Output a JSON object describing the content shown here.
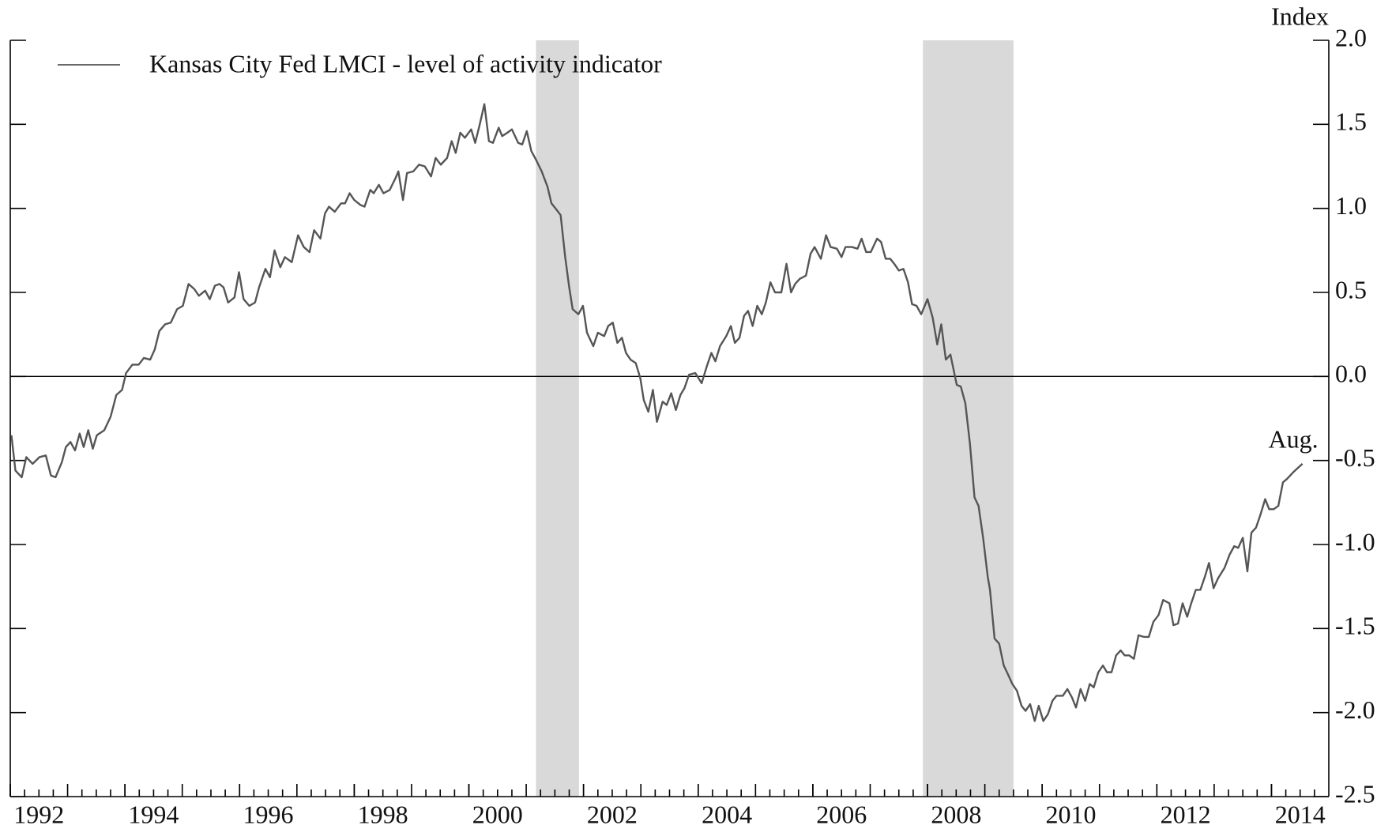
{
  "chart_data": {
    "type": "line",
    "y_label": "Index",
    "legend": "top-left",
    "annotation": "Aug.",
    "reference_line": 0,
    "xlim": [
      1992,
      2015
    ],
    "xticks": [
      1992,
      1994,
      1996,
      1998,
      2000,
      2002,
      2004,
      2006,
      2008,
      2010,
      2012,
      2014
    ],
    "ylim": [
      -2.5,
      2.0
    ],
    "yticks": [
      {
        "value": -2.5,
        "label": "-2.5"
      },
      {
        "value": -2,
        "label": "-2.0"
      },
      {
        "value": -1.5,
        "label": "-1.5"
      },
      {
        "value": -1,
        "label": "-1.0"
      },
      {
        "value": -0.5,
        "label": "-0.5"
      },
      {
        "value": 0,
        "label": "0.0"
      },
      {
        "value": 0.5,
        "label": "0.5"
      },
      {
        "value": 1,
        "label": "1.0"
      },
      {
        "value": 1.5,
        "label": "1.5"
      },
      {
        "value": 2,
        "label": "2.0"
      }
    ],
    "shaded_periods": [
      [
        2001.17,
        2001.92
      ],
      [
        2007.92,
        2009.5
      ]
    ],
    "shade_color": "#d9d9d9",
    "x": [
      1992.02,
      1992.09,
      1992.2,
      1992.28,
      1992.39,
      1992.51,
      1992.62,
      1992.71,
      1992.79,
      1992.9,
      1992.97,
      1993.05,
      1993.13,
      1993.21,
      1993.28,
      1993.36,
      1993.44,
      1993.51,
      1993.64,
      1993.75,
      1993.85,
      1993.95,
      1994.02,
      1994.13,
      1994.24,
      1994.33,
      1994.44,
      1994.52,
      1994.6,
      1994.7,
      1994.8,
      1994.91,
      1995.01,
      1995.11,
      1995.21,
      1995.29,
      1995.4,
      1995.48,
      1995.57,
      1995.65,
      1995.72,
      1995.8,
      1995.91,
      1995.99,
      1996.07,
      1996.17,
      1996.27,
      1996.34,
      1996.45,
      1996.53,
      1996.61,
      1996.71,
      1996.79,
      1996.91,
      1997.02,
      1997.12,
      1997.22,
      1997.3,
      1997.41,
      1997.49,
      1997.56,
      1997.66,
      1997.77,
      1997.84,
      1997.92,
      1998.0,
      1998.11,
      1998.18,
      1998.28,
      1998.34,
      1998.43,
      1998.51,
      1998.62,
      1998.72,
      1998.77,
      1998.85,
      1998.92,
      1999.03,
      1999.13,
      1999.23,
      1999.34,
      1999.42,
      1999.51,
      1999.62,
      1999.7,
      1999.77,
      1999.85,
      1999.93,
      2000.04,
      2000.11,
      2000.19,
      2000.27,
      2000.35,
      2000.42,
      2000.52,
      2000.58,
      2000.67,
      2000.75,
      2000.86,
      2000.93,
      2001.01,
      2001.09,
      2001.17,
      2001.27,
      2001.37,
      2001.44,
      2001.51,
      2001.6,
      2001.68,
      2001.75,
      2001.81,
      2001.91,
      2001.99,
      2002.06,
      2002.17,
      2002.25,
      2002.36,
      2002.43,
      2002.51,
      2002.59,
      2002.67,
      2002.74,
      2002.82,
      2002.91,
      2002.99,
      2003.05,
      2003.13,
      2003.21,
      2003.28,
      2003.38,
      2003.45,
      2003.53,
      2003.61,
      2003.69,
      2003.76,
      2003.84,
      2003.95,
      2004.06,
      2004.15,
      2004.23,
      2004.3,
      2004.38,
      2004.49,
      2004.57,
      2004.64,
      2004.72,
      2004.8,
      2004.87,
      2004.95,
      2005.03,
      2005.11,
      2005.18,
      2005.26,
      2005.34,
      2005.45,
      2005.54,
      2005.62,
      2005.69,
      2005.77,
      2005.88,
      2005.96,
      2006.03,
      2006.14,
      2006.23,
      2006.31,
      2006.42,
      2006.5,
      2006.57,
      2006.68,
      2006.78,
      2006.85,
      2006.93,
      2007.01,
      2007.12,
      2007.19,
      2007.27,
      2007.35,
      2007.42,
      2007.5,
      2007.58,
      2007.66,
      2007.73,
      2007.81,
      2007.89,
      2008.0,
      2008.09,
      2008.17,
      2008.24,
      2008.32,
      2008.4,
      2008.51,
      2008.58,
      2008.66,
      2008.74,
      2008.82,
      2008.89,
      2008.97,
      2009.05,
      2009.09,
      2009.17,
      2009.25,
      2009.33,
      2009.4,
      2009.48,
      2009.56,
      2009.64,
      2009.71,
      2009.79,
      2009.87,
      2009.94,
      2010.02,
      2010.1,
      2010.18,
      2010.25,
      2010.36,
      2010.44,
      2010.52,
      2010.59,
      2010.67,
      2010.75,
      2010.83,
      2010.9,
      2010.98,
      2011.06,
      2011.13,
      2011.21,
      2011.29,
      2011.37,
      2011.44,
      2011.52,
      2011.6,
      2011.68,
      2011.78,
      2011.86,
      2011.94,
      2012.03,
      2012.11,
      2012.22,
      2012.29,
      2012.37,
      2012.45,
      2012.53,
      2012.6,
      2012.68,
      2012.76,
      2012.84,
      2012.91,
      2012.99,
      2013.07,
      2013.18,
      2013.27,
      2013.35,
      2013.42,
      2013.5,
      2013.58,
      2013.65,
      2013.73,
      2013.81,
      2013.89,
      2013.96,
      2014.04,
      2014.12,
      2014.2,
      2014.27,
      2014.38,
      2014.54
    ],
    "series": [
      {
        "name": "Kansas City Fed LMCI - level of activity indicator",
        "color": "#555555",
        "values": [
          -0.35,
          -0.56,
          -0.6,
          -0.48,
          -0.52,
          -0.48,
          -0.47,
          -0.59,
          -0.6,
          -0.51,
          -0.42,
          -0.39,
          -0.44,
          -0.34,
          -0.42,
          -0.32,
          -0.43,
          -0.35,
          -0.32,
          -0.24,
          -0.11,
          -0.08,
          0.02,
          0.07,
          0.07,
          0.11,
          0.1,
          0.16,
          0.27,
          0.31,
          0.32,
          0.4,
          0.42,
          0.55,
          0.52,
          0.48,
          0.51,
          0.46,
          0.54,
          0.55,
          0.53,
          0.44,
          0.47,
          0.62,
          0.46,
          0.42,
          0.44,
          0.53,
          0.64,
          0.59,
          0.75,
          0.65,
          0.71,
          0.68,
          0.84,
          0.77,
          0.74,
          0.87,
          0.82,
          0.97,
          1.01,
          0.98,
          1.03,
          1.03,
          1.09,
          1.05,
          1.02,
          1.01,
          1.11,
          1.09,
          1.14,
          1.09,
          1.11,
          1.18,
          1.22,
          1.05,
          1.21,
          1.22,
          1.26,
          1.25,
          1.19,
          1.3,
          1.26,
          1.3,
          1.4,
          1.33,
          1.45,
          1.42,
          1.47,
          1.39,
          1.5,
          1.62,
          1.4,
          1.39,
          1.48,
          1.43,
          1.45,
          1.47,
          1.39,
          1.38,
          1.46,
          1.34,
          1.29,
          1.22,
          1.13,
          1.03,
          1.0,
          0.96,
          0.71,
          0.53,
          0.4,
          0.37,
          0.42,
          0.26,
          0.18,
          0.26,
          0.24,
          0.3,
          0.32,
          0.2,
          0.23,
          0.14,
          0.1,
          0.08,
          -0.01,
          -0.14,
          -0.21,
          -0.08,
          -0.27,
          -0.15,
          -0.17,
          -0.1,
          -0.2,
          -0.11,
          -0.07,
          0.01,
          0.02,
          -0.04,
          0.06,
          0.14,
          0.09,
          0.18,
          0.24,
          0.3,
          0.2,
          0.23,
          0.36,
          0.39,
          0.3,
          0.42,
          0.37,
          0.44,
          0.56,
          0.5,
          0.5,
          0.67,
          0.5,
          0.55,
          0.58,
          0.6,
          0.73,
          0.77,
          0.7,
          0.84,
          0.77,
          0.76,
          0.71,
          0.77,
          0.77,
          0.76,
          0.82,
          0.74,
          0.74,
          0.82,
          0.8,
          0.7,
          0.7,
          0.67,
          0.63,
          0.64,
          0.56,
          0.43,
          0.42,
          0.37,
          0.46,
          0.35,
          0.19,
          0.31,
          0.1,
          0.13,
          -0.05,
          -0.06,
          -0.16,
          -0.4,
          -0.72,
          -0.77,
          -0.96,
          -1.19,
          -1.27,
          -1.56,
          -1.59,
          -1.72,
          -1.77,
          -1.83,
          -1.87,
          -1.96,
          -1.99,
          -1.95,
          -2.05,
          -1.96,
          -2.05,
          -2.01,
          -1.93,
          -1.9,
          -1.9,
          -1.86,
          -1.91,
          -1.97,
          -1.86,
          -1.93,
          -1.83,
          -1.85,
          -1.76,
          -1.72,
          -1.76,
          -1.76,
          -1.66,
          -1.63,
          -1.66,
          -1.66,
          -1.68,
          -1.54,
          -1.55,
          -1.55,
          -1.46,
          -1.42,
          -1.33,
          -1.35,
          -1.48,
          -1.47,
          -1.35,
          -1.43,
          -1.35,
          -1.27,
          -1.27,
          -1.19,
          -1.11,
          -1.26,
          -1.2,
          -1.14,
          -1.06,
          -1.01,
          -1.02,
          -0.96,
          -1.16,
          -0.93,
          -0.9,
          -0.82,
          -0.73,
          -0.79,
          -0.79,
          -0.77,
          -0.63,
          -0.61,
          -0.57,
          -0.52
        ]
      }
    ]
  }
}
